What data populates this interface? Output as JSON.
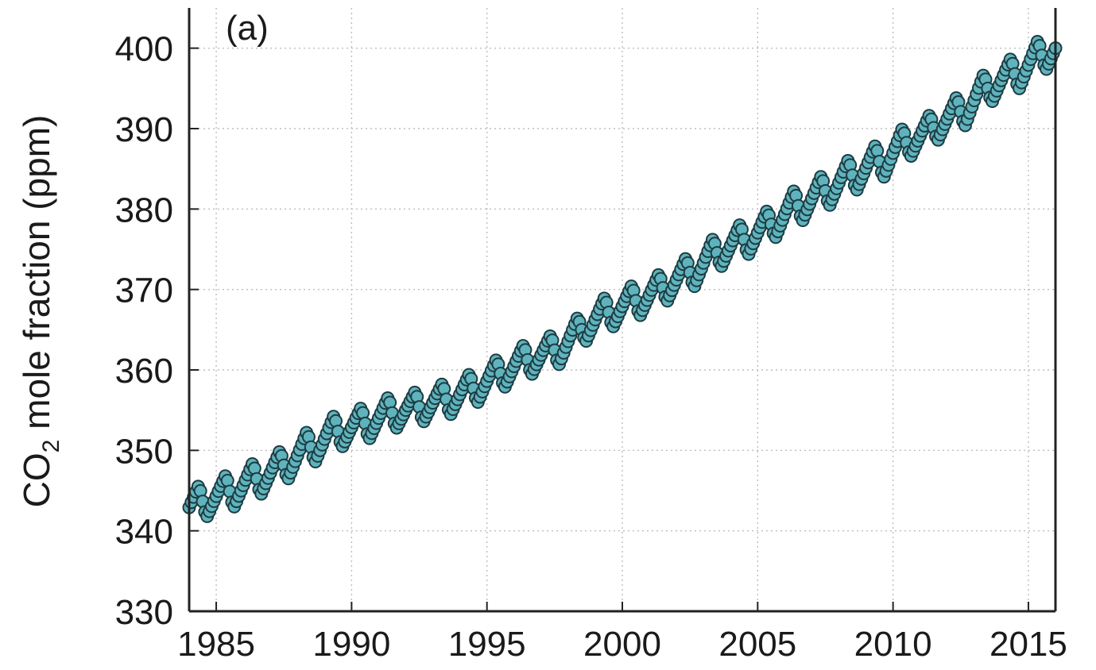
{
  "chart_data": {
    "type": "scatter",
    "panel_label": "(a)",
    "title": "",
    "xlabel": "",
    "ylabel": {
      "prefix": "CO",
      "subscript": "2",
      "suffix": " mole fraction (ppm)"
    },
    "xlim": [
      1984.0,
      2016.0
    ],
    "ylim": [
      330,
      405
    ],
    "x_ticks": [
      1985,
      1990,
      1995,
      2000,
      2005,
      2010,
      2015
    ],
    "y_ticks": [
      330,
      340,
      350,
      360,
      370,
      380,
      390,
      400
    ],
    "grid": true,
    "marker_color": "#5fb3bd",
    "marker_edge_color": "#1d3c42",
    "series": [
      {
        "points_description_note": "",
        "annual": [
          {
            "year": 1984,
            "peak": 345.5,
            "trough": 341.8
          },
          {
            "year": 1985,
            "peak": 346.8,
            "trough": 343.0
          },
          {
            "year": 1986,
            "peak": 348.3,
            "trough": 344.6
          },
          {
            "year": 1987,
            "peak": 349.8,
            "trough": 346.5
          },
          {
            "year": 1988,
            "peak": 352.2,
            "trough": 348.6
          },
          {
            "year": 1989,
            "peak": 354.2,
            "trough": 350.5
          },
          {
            "year": 1990,
            "peak": 355.2,
            "trough": 351.5
          },
          {
            "year": 1991,
            "peak": 356.5,
            "trough": 352.8
          },
          {
            "year": 1992,
            "peak": 357.2,
            "trough": 353.6
          },
          {
            "year": 1993,
            "peak": 358.2,
            "trough": 354.5
          },
          {
            "year": 1994,
            "peak": 359.4,
            "trough": 356.0
          },
          {
            "year": 1995,
            "peak": 361.2,
            "trough": 357.9
          },
          {
            "year": 1996,
            "peak": 363.0,
            "trough": 359.5
          },
          {
            "year": 1997,
            "peak": 364.2,
            "trough": 360.7
          },
          {
            "year": 1998,
            "peak": 366.4,
            "trough": 363.6
          },
          {
            "year": 1999,
            "peak": 368.9,
            "trough": 365.4
          },
          {
            "year": 2000,
            "peak": 370.4,
            "trough": 366.8
          },
          {
            "year": 2001,
            "peak": 371.8,
            "trough": 368.6
          },
          {
            "year": 2002,
            "peak": 373.8,
            "trough": 370.4
          },
          {
            "year": 2003,
            "peak": 376.2,
            "trough": 372.9
          },
          {
            "year": 2004,
            "peak": 378.0,
            "trough": 374.4
          },
          {
            "year": 2005,
            "peak": 379.7,
            "trough": 376.5
          },
          {
            "year": 2006,
            "peak": 382.2,
            "trough": 378.6
          },
          {
            "year": 2007,
            "peak": 384.0,
            "trough": 380.5
          },
          {
            "year": 2008,
            "peak": 386.0,
            "trough": 382.4
          },
          {
            "year": 2009,
            "peak": 387.8,
            "trough": 384.0
          },
          {
            "year": 2010,
            "peak": 389.9,
            "trough": 386.6
          },
          {
            "year": 2011,
            "peak": 391.6,
            "trough": 388.6
          },
          {
            "year": 2012,
            "peak": 393.8,
            "trough": 390.4
          },
          {
            "year": 2013,
            "peak": 396.6,
            "trough": 393.4
          },
          {
            "year": 2014,
            "peak": 398.6,
            "trough": 395.0
          },
          {
            "year": 2015,
            "peak": 400.8,
            "trough": 397.4
          },
          {
            "year": 2016,
            "peak": 402.6,
            "trough": 402.6
          }
        ]
      }
    ]
  }
}
